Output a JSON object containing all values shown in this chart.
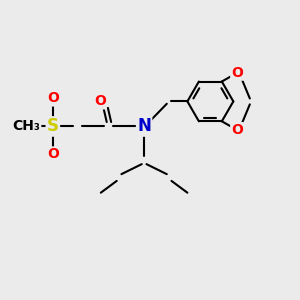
{
  "bg_color": "#ebebeb",
  "bond_color": "#000000",
  "atom_colors": {
    "O": "#ff0000",
    "N": "#0000cc",
    "S": "#cccc00",
    "C": "#000000"
  },
  "line_width": 1.5,
  "font_size": 10
}
